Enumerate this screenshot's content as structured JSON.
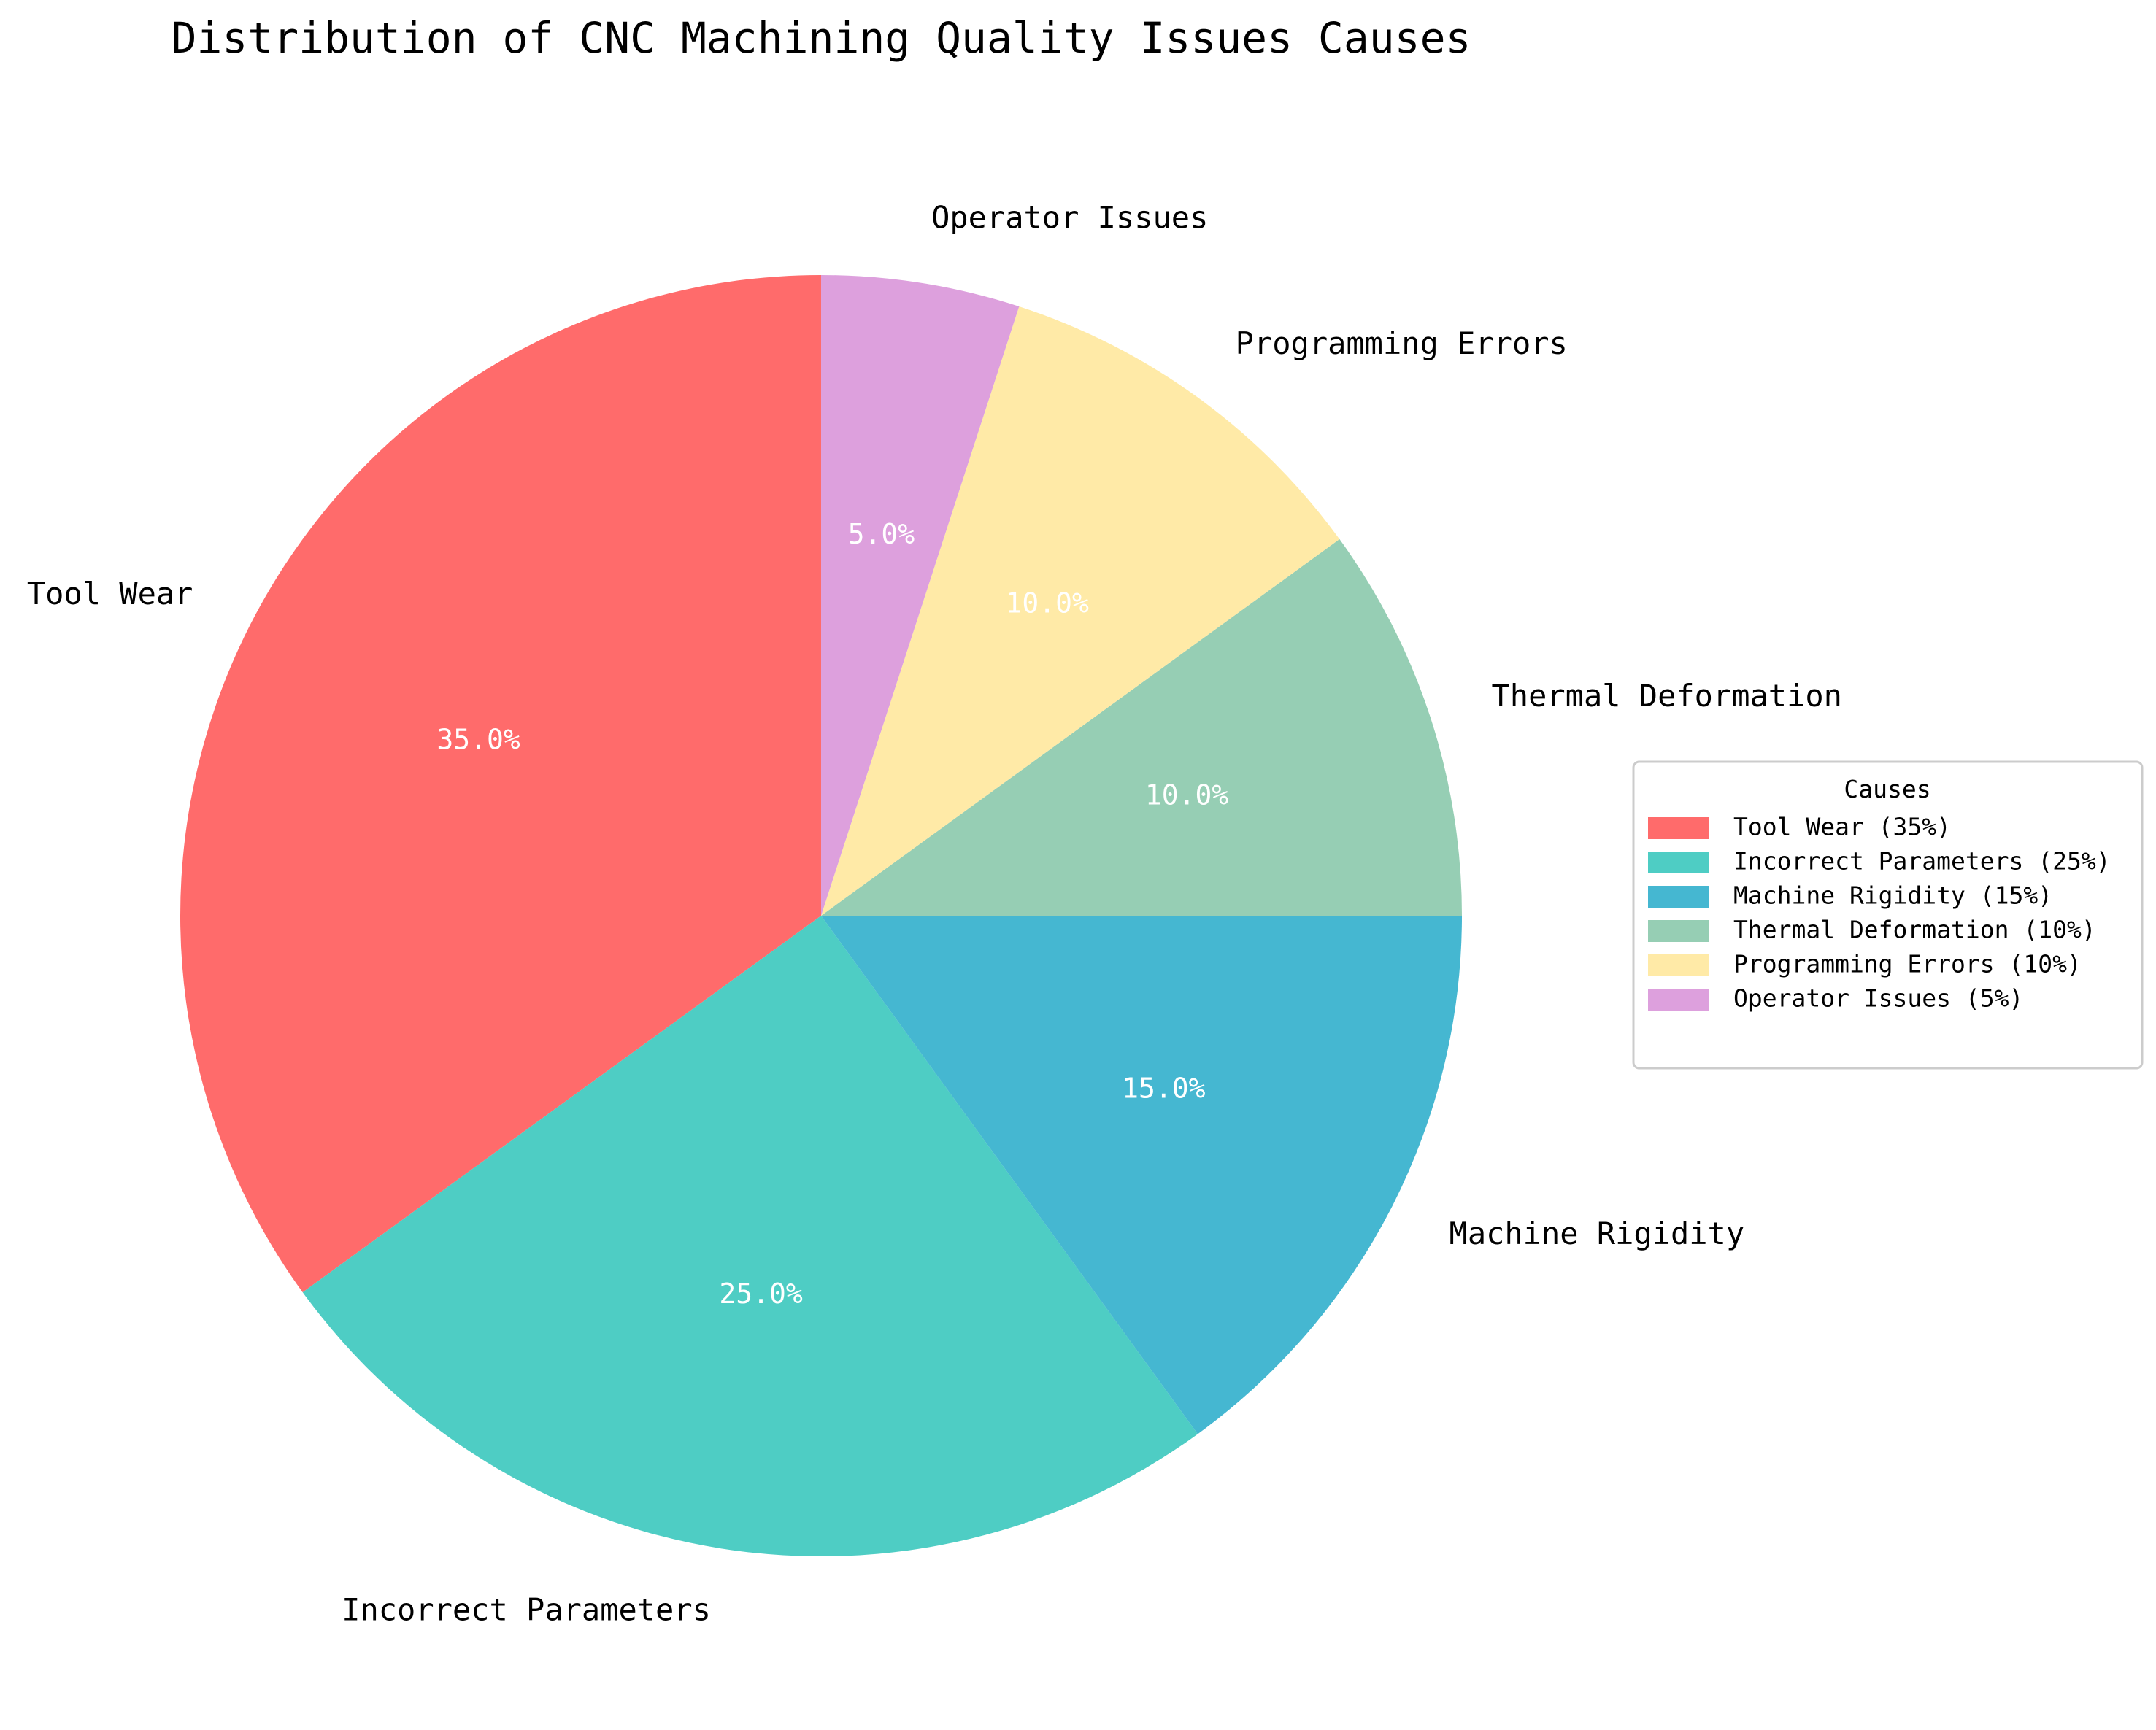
{
  "chart_data": {
    "type": "pie",
    "title": "Distribution of CNC Machining Quality Issues Causes",
    "slices": [
      {
        "label": "Tool Wear",
        "value": 35,
        "pct_label": "35.0%",
        "legend_label": "Tool Wear (35%)",
        "color": "#ff6b6b"
      },
      {
        "label": "Incorrect Parameters",
        "value": 25,
        "pct_label": "25.0%",
        "legend_label": "Incorrect Parameters (25%)",
        "color": "#4ecdc4"
      },
      {
        "label": "Machine Rigidity",
        "value": 15,
        "pct_label": "15.0%",
        "legend_label": "Machine Rigidity (15%)",
        "color": "#45b7d1"
      },
      {
        "label": "Thermal Deformation",
        "value": 10,
        "pct_label": "10.0%",
        "legend_label": "Thermal Deformation (10%)",
        "color": "#96ceb4"
      },
      {
        "label": "Programming Errors",
        "value": 10,
        "pct_label": "10.0%",
        "legend_label": "Programming Errors (10%)",
        "color": "#ffeaa7"
      },
      {
        "label": "Operator Issues",
        "value": 5,
        "pct_label": "5.0%",
        "legend_label": "Operator Issues (5%)",
        "color": "#dda0dd"
      }
    ],
    "start_angle_deg": 90,
    "direction": "counterclockwise",
    "legend": {
      "title": "Causes",
      "placement": "right"
    }
  }
}
